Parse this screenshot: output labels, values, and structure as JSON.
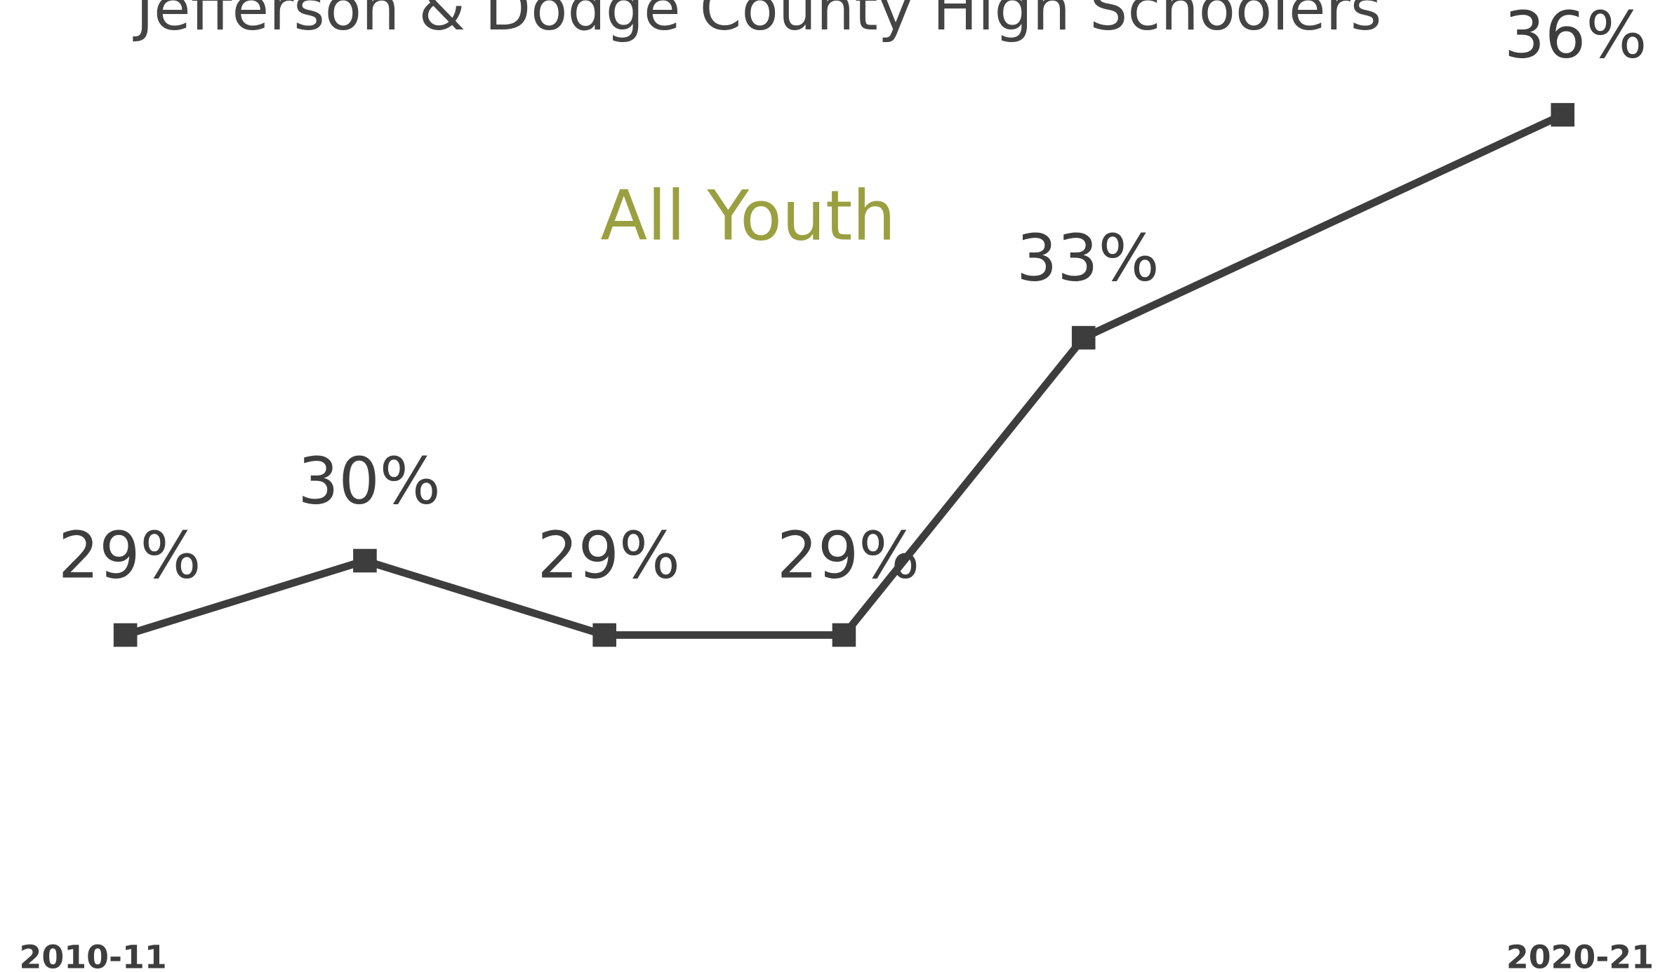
{
  "chart_data": {
    "type": "line",
    "title": "Jefferson & Dodge County High Schoolers",
    "subtitle": "All Youth",
    "categories": [
      "2010-11",
      null,
      null,
      null,
      null,
      null,
      "2020-21"
    ],
    "series": [
      {
        "name": "All Youth",
        "color": "#3d3d3d",
        "values": [
          29,
          30,
          29,
          29,
          33,
          null,
          36
        ],
        "value_labels": [
          "29%",
          "30%",
          "29%",
          "29%",
          "33%",
          null,
          "36%"
        ]
      }
    ],
    "ylim": [
      25,
      37
    ],
    "connect_nulls": true
  }
}
